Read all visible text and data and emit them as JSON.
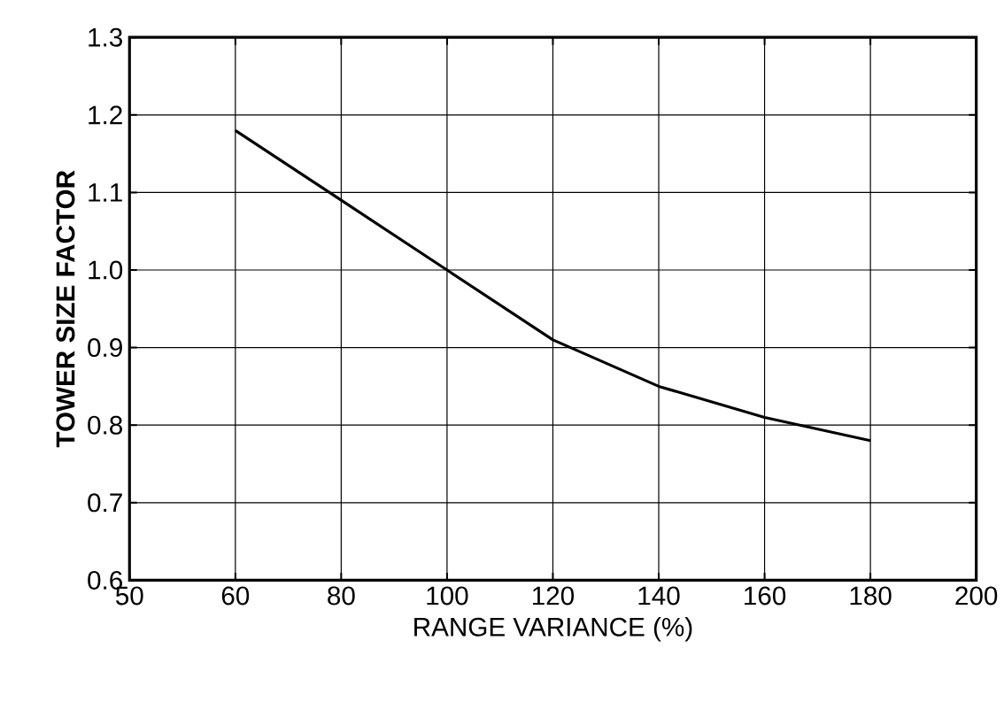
{
  "chart_data": {
    "type": "line",
    "xlabel": "RANGE VARIANCE (%)",
    "ylabel": "TOWER SIZE  FACTOR",
    "categories": [
      "50",
      "60",
      "80",
      "100",
      "120",
      "140",
      "160",
      "180",
      "200"
    ],
    "series": [
      {
        "color": "#000000",
        "values": [
          null,
          1.18,
          1.09,
          1.0,
          0.91,
          0.85,
          0.81,
          0.78,
          null
        ]
      }
    ],
    "ylim": [
      0.6,
      1.3
    ],
    "yticks": [
      0.6,
      0.7,
      0.8,
      0.9,
      {
        "value": 1.0,
        "label": "1.0"
      },
      1.1,
      1.2,
      1.3
    ],
    "grid": true
  }
}
